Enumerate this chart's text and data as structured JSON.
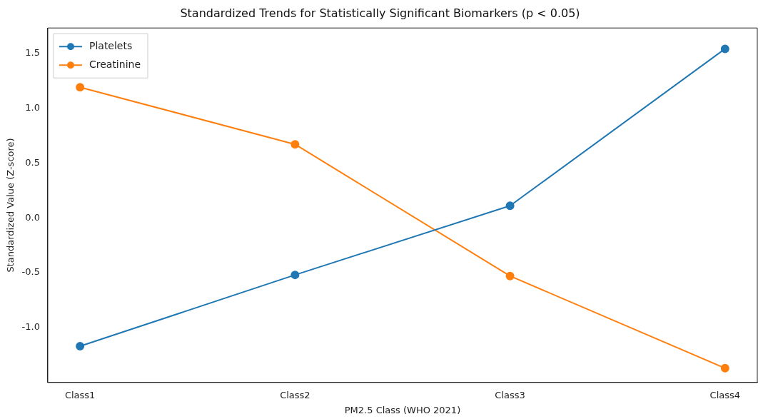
{
  "chart_data": {
    "type": "line",
    "title": "Standardized Trends for Statistically Significant Biomarkers (p < 0.05)",
    "xlabel": "PM2.5 Class (WHO 2021)",
    "ylabel": "Standardized Value (Z-score)",
    "categories": [
      "Class1",
      "Class2",
      "Class3",
      "Class4"
    ],
    "series": [
      {
        "name": "Platelets",
        "color": "#1f77b4",
        "values": [
          -1.17,
          -0.52,
          0.11,
          1.54
        ]
      },
      {
        "name": "Creatinine",
        "color": "#ff7f0e",
        "values": [
          1.19,
          0.67,
          -0.53,
          -1.37
        ]
      }
    ],
    "ylim": [
      -1.5,
      1.73
    ],
    "yticks": [
      {
        "value": -1,
        "label": "-1.0"
      },
      -0.5,
      {
        "value": 0,
        "label": "0.0"
      },
      0.5,
      {
        "value": 1,
        "label": "1.0"
      },
      1.5
    ],
    "grid": false,
    "legend": "top left",
    "marker": "circle",
    "line_style": "solid"
  }
}
